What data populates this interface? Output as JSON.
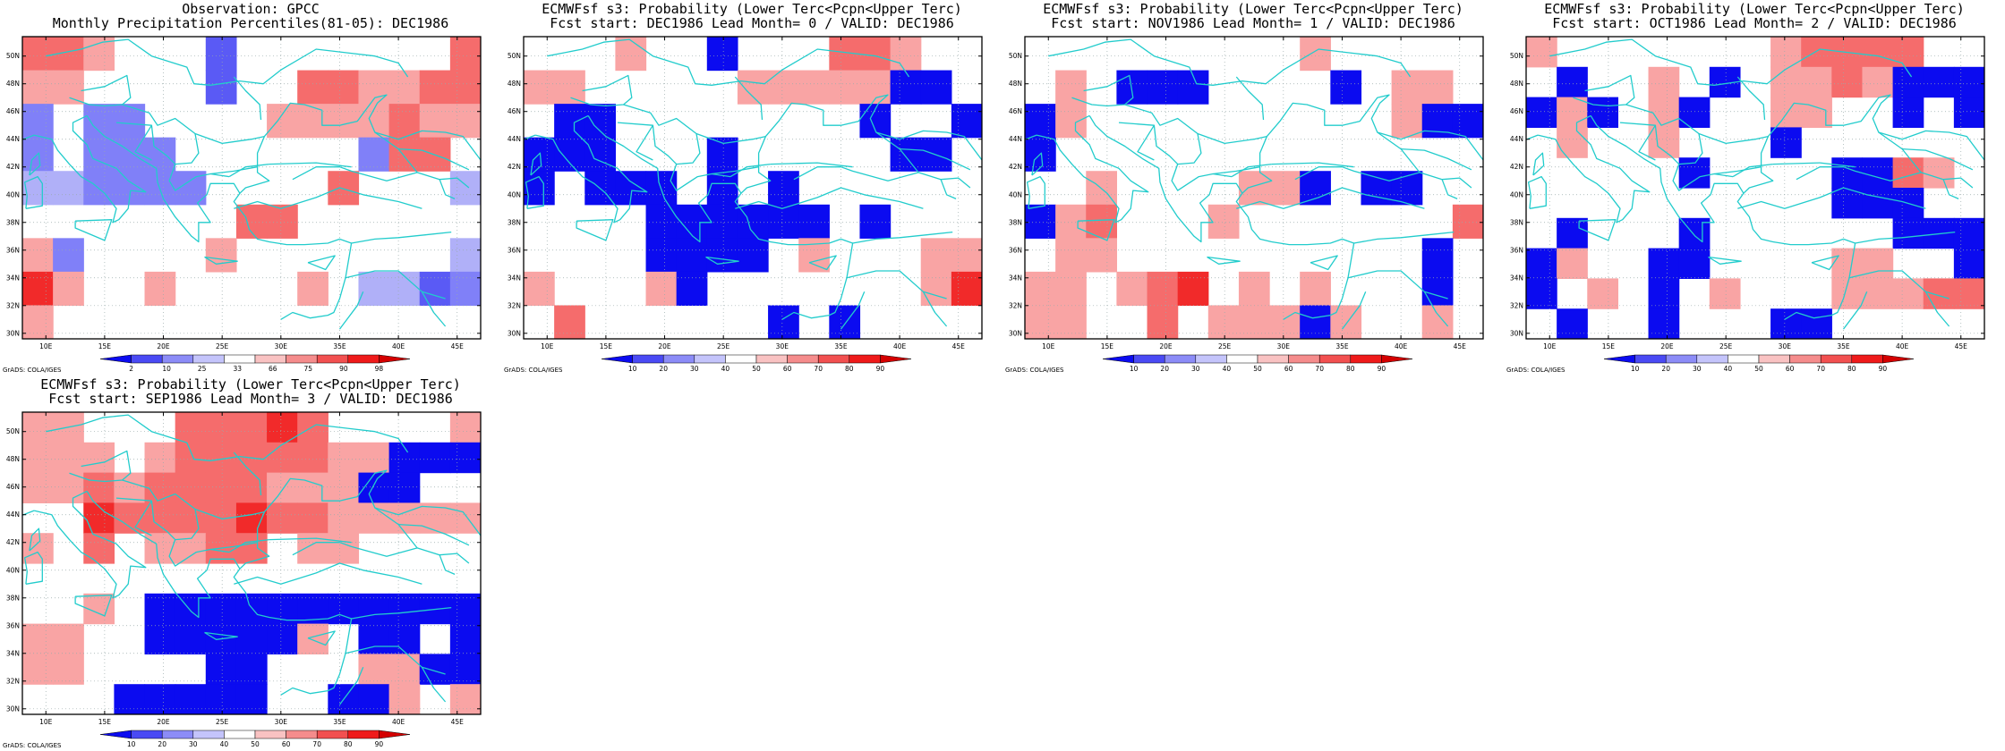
{
  "panels": [
    {
      "title1": "Observation: GPCC",
      "title2": "Monthly Precipitation Percentiles(81-05): DEC1986",
      "colorbar_labels": [
        "2",
        "10",
        "25",
        "33",
        "66",
        "75",
        "90",
        "98"
      ],
      "grid": [
        [
          "r2",
          "r2",
          "r1",
          "w",
          "w",
          "w",
          "b2",
          "w",
          "w",
          "w",
          "w",
          "w",
          "w",
          "w",
          "r2"
        ],
        [
          "r1",
          "r1",
          "w",
          "w",
          "w",
          "w",
          "b2",
          "w",
          "w",
          "r2",
          "r2",
          "r1",
          "r1",
          "r2",
          "r2"
        ],
        [
          "b1",
          "w",
          "b1",
          "b1",
          "w",
          "w",
          "w",
          "w",
          "r1",
          "r1",
          "r1",
          "r1",
          "r2",
          "r1",
          "r1"
        ],
        [
          "b1",
          "w",
          "b1",
          "b1",
          "b1",
          "w",
          "w",
          "w",
          "w",
          "w",
          "w",
          "b1",
          "r2",
          "r2",
          "w"
        ],
        [
          "b0",
          "b0",
          "b1",
          "b1",
          "b1",
          "b1",
          "w",
          "w",
          "w",
          "w",
          "r2",
          "w",
          "w",
          "w",
          "b0"
        ],
        [
          "w",
          "w",
          "w",
          "w",
          "w",
          "w",
          "w",
          "r2",
          "r2",
          "w",
          "w",
          "w",
          "w",
          "w",
          "w"
        ],
        [
          "r1",
          "b1",
          "w",
          "w",
          "w",
          "w",
          "r1",
          "w",
          "w",
          "w",
          "w",
          "w",
          "w",
          "w",
          "b0"
        ],
        [
          "r3",
          "r1",
          "w",
          "w",
          "r1",
          "w",
          "w",
          "w",
          "w",
          "r1",
          "w",
          "b0",
          "b0",
          "b2",
          "b1"
        ],
        [
          "r1",
          "w",
          "w",
          "w",
          "w",
          "w",
          "w",
          "w",
          "w",
          "w",
          "w",
          "w",
          "w",
          "w",
          "w"
        ]
      ]
    },
    {
      "title1": "ECMWFsf s3: Probability (Lower Terc<Pcpn<Upper Terc)",
      "title2": "Fcst start: DEC1986   Lead Month= 0 / VALID: DEC1986",
      "colorbar_labels": [
        "10",
        "20",
        "30",
        "40",
        "50",
        "60",
        "70",
        "80",
        "90"
      ],
      "grid": [
        [
          "w",
          "w",
          "w",
          "r1",
          "w",
          "w",
          "b3",
          "w",
          "w",
          "w",
          "r2",
          "r2",
          "r1",
          "w",
          "w"
        ],
        [
          "r1",
          "r1",
          "w",
          "w",
          "w",
          "w",
          "w",
          "r1",
          "r1",
          "r1",
          "r1",
          "r1",
          "b3",
          "b3",
          "w"
        ],
        [
          "w",
          "b3",
          "b3",
          "w",
          "w",
          "w",
          "w",
          "w",
          "w",
          "w",
          "w",
          "b3",
          "w",
          "w",
          "b3"
        ],
        [
          "b3",
          "b3",
          "b3",
          "w",
          "w",
          "w",
          "b3",
          "w",
          "w",
          "w",
          "w",
          "w",
          "b3",
          "b3",
          "w"
        ],
        [
          "b3",
          "w",
          "b3",
          "b3",
          "b3",
          "w",
          "b3",
          "w",
          "b3",
          "w",
          "w",
          "w",
          "w",
          "w",
          "w"
        ],
        [
          "w",
          "w",
          "w",
          "w",
          "b3",
          "b3",
          "b3",
          "b3",
          "b3",
          "b3",
          "w",
          "b3",
          "w",
          "w",
          "w"
        ],
        [
          "w",
          "w",
          "w",
          "w",
          "b3",
          "b3",
          "b3",
          "b3",
          "w",
          "r1",
          "w",
          "w",
          "w",
          "r1",
          "r1"
        ],
        [
          "r1",
          "w",
          "w",
          "w",
          "r1",
          "b3",
          "w",
          "w",
          "w",
          "w",
          "w",
          "w",
          "w",
          "r1",
          "r3"
        ],
        [
          "w",
          "r2",
          "w",
          "w",
          "w",
          "w",
          "w",
          "w",
          "b3",
          "w",
          "b3",
          "w",
          "w",
          "w",
          "w"
        ]
      ]
    },
    {
      "title1": "ECMWFsf s3: Probability (Lower Terc<Pcpn<Upper Terc)",
      "title2": "Fcst start: NOV1986   Lead Month= 1 / VALID: DEC1986",
      "colorbar_labels": [
        "10",
        "20",
        "30",
        "40",
        "50",
        "60",
        "70",
        "80",
        "90"
      ],
      "grid": [
        [
          "w",
          "w",
          "w",
          "w",
          "w",
          "w",
          "w",
          "w",
          "w",
          "r1",
          "w",
          "w",
          "w",
          "w",
          "w"
        ],
        [
          "w",
          "r1",
          "w",
          "b3",
          "b3",
          "b3",
          "w",
          "w",
          "w",
          "w",
          "b3",
          "w",
          "r1",
          "r1",
          "w"
        ],
        [
          "b3",
          "r1",
          "w",
          "w",
          "w",
          "w",
          "w",
          "w",
          "w",
          "w",
          "w",
          "w",
          "r1",
          "b3",
          "b3"
        ],
        [
          "b3",
          "w",
          "w",
          "w",
          "w",
          "w",
          "w",
          "w",
          "w",
          "w",
          "w",
          "w",
          "w",
          "w",
          "w"
        ],
        [
          "w",
          "w",
          "r1",
          "w",
          "w",
          "w",
          "w",
          "r1",
          "r1",
          "b3",
          "w",
          "b3",
          "b3",
          "w",
          "w"
        ],
        [
          "b3",
          "r1",
          "r2",
          "w",
          "w",
          "w",
          "r1",
          "w",
          "w",
          "w",
          "w",
          "w",
          "w",
          "w",
          "r2"
        ],
        [
          "w",
          "r1",
          "r1",
          "w",
          "w",
          "w",
          "w",
          "w",
          "w",
          "w",
          "w",
          "w",
          "w",
          "b3",
          "w"
        ],
        [
          "r1",
          "r1",
          "w",
          "r1",
          "r2",
          "r3",
          "w",
          "r1",
          "w",
          "r1",
          "w",
          "w",
          "w",
          "b3",
          "w"
        ],
        [
          "r1",
          "r1",
          "w",
          "w",
          "r2",
          "w",
          "r1",
          "r1",
          "r1",
          "b3",
          "r1",
          "w",
          "w",
          "r1",
          "w"
        ]
      ]
    },
    {
      "title1": "ECMWFsf s3: Probability (Lower Terc<Pcpn<Upper Terc)",
      "title2": "Fcst start: OCT1986   Lead Month= 2 / VALID: DEC1986",
      "colorbar_labels": [
        "10",
        "20",
        "30",
        "40",
        "50",
        "60",
        "70",
        "80",
        "90"
      ],
      "grid": [
        [
          "r1",
          "w",
          "w",
          "w",
          "w",
          "w",
          "w",
          "w",
          "r1",
          "r2",
          "r2",
          "r2",
          "r2",
          "w",
          "w"
        ],
        [
          "w",
          "b3",
          "w",
          "w",
          "r1",
          "w",
          "b3",
          "w",
          "r1",
          "r1",
          "r2",
          "r1",
          "b3",
          "b3",
          "b3"
        ],
        [
          "b3",
          "r1",
          "b3",
          "w",
          "r1",
          "b3",
          "w",
          "w",
          "r1",
          "r1",
          "w",
          "w",
          "b3",
          "w",
          "b3"
        ],
        [
          "w",
          "r1",
          "w",
          "w",
          "r1",
          "w",
          "w",
          "w",
          "b3",
          "w",
          "w",
          "w",
          "w",
          "w",
          "w"
        ],
        [
          "w",
          "w",
          "w",
          "w",
          "w",
          "b3",
          "w",
          "w",
          "w",
          "w",
          "b3",
          "b3",
          "r2",
          "r1",
          "w"
        ],
        [
          "w",
          "w",
          "w",
          "w",
          "w",
          "w",
          "w",
          "w",
          "w",
          "w",
          "b3",
          "b3",
          "b3",
          "w",
          "w"
        ],
        [
          "w",
          "b3",
          "w",
          "w",
          "w",
          "b3",
          "w",
          "w",
          "w",
          "w",
          "w",
          "w",
          "b3",
          "b3",
          "b3"
        ],
        [
          "b3",
          "r1",
          "w",
          "w",
          "b3",
          "b3",
          "w",
          "w",
          "w",
          "w",
          "r1",
          "r1",
          "w",
          "w",
          "b3"
        ],
        [
          "b3",
          "w",
          "r1",
          "w",
          "b3",
          "w",
          "r1",
          "w",
          "w",
          "w",
          "r1",
          "r1",
          "r1",
          "r2",
          "r2"
        ],
        [
          "w",
          "b3",
          "w",
          "w",
          "b3",
          "w",
          "w",
          "w",
          "b3",
          "b3",
          "w",
          "w",
          "w",
          "w",
          "w"
        ]
      ]
    },
    {
      "title1": "ECMWFsf s3: Probability (Lower Terc<Pcpn<Upper Terc)",
      "title2": "Fcst start: SEP1986   Lead Month= 3 / VALID: DEC1986",
      "colorbar_labels": [
        "10",
        "20",
        "30",
        "40",
        "50",
        "60",
        "70",
        "80",
        "90"
      ],
      "grid": [
        [
          "r1",
          "r1",
          "w",
          "w",
          "w",
          "r2",
          "r2",
          "r2",
          "r3",
          "r2",
          "w",
          "w",
          "w",
          "w",
          "r1"
        ],
        [
          "r1",
          "r1",
          "r1",
          "w",
          "r1",
          "r2",
          "r2",
          "r2",
          "r2",
          "r2",
          "r1",
          "r1",
          "b3",
          "b3",
          "b3"
        ],
        [
          "r1",
          "r1",
          "r2",
          "r1",
          "r2",
          "r2",
          "r2",
          "r2",
          "r1",
          "r1",
          "r1",
          "b3",
          "b3",
          "w",
          "w"
        ],
        [
          "w",
          "w",
          "r3",
          "r2",
          "r2",
          "r2",
          "r2",
          "r3",
          "r2",
          "r2",
          "r1",
          "r1",
          "r1",
          "r1",
          "r1"
        ],
        [
          "r1",
          "w",
          "r2",
          "w",
          "r1",
          "r1",
          "r2",
          "r2",
          "w",
          "r1",
          "r1",
          "w",
          "w",
          "w",
          "w"
        ],
        [
          "w",
          "w",
          "w",
          "w",
          "w",
          "w",
          "w",
          "w",
          "w",
          "w",
          "w",
          "w",
          "w",
          "w",
          "w"
        ],
        [
          "w",
          "w",
          "r1",
          "w",
          "b3",
          "b3",
          "b3",
          "b3",
          "b3",
          "b3",
          "b3",
          "b3",
          "b3",
          "b3",
          "b3"
        ],
        [
          "r1",
          "r1",
          "w",
          "w",
          "b3",
          "b3",
          "b3",
          "b3",
          "b3",
          "r1",
          "w",
          "b3",
          "b3",
          "w",
          "b3"
        ],
        [
          "r1",
          "r1",
          "w",
          "w",
          "w",
          "w",
          "b3",
          "b3",
          "w",
          "w",
          "w",
          "r1",
          "r1",
          "b3",
          "b3"
        ],
        [
          "w",
          "w",
          "w",
          "b3",
          "b3",
          "b3",
          "b3",
          "b3",
          "w",
          "w",
          "b3",
          "b3",
          "r1",
          "w",
          "r1"
        ]
      ]
    }
  ],
  "lat_labels": [
    "50N",
    "48N",
    "46N",
    "44N",
    "42N",
    "40N",
    "38N",
    "36N",
    "34N",
    "32N",
    "30N"
  ],
  "lon_labels": [
    "10E",
    "15E",
    "20E",
    "25E",
    "30E",
    "35E",
    "40E",
    "45E"
  ],
  "footer": "GrADS: COLA/IGES",
  "palette": {
    "b0": "#b0b0f8",
    "b1": "#8080f8",
    "b2": "#5a5af5",
    "b3": "#0b0bf0",
    "r1": "#f9a4a4",
    "r2": "#f56c6c",
    "r3": "#f12a2a",
    "w": "#ffffff",
    "coast": "#22cccc"
  },
  "colorbar_colors": [
    "#0b0bf0",
    "#4a4af4",
    "#8c8cf7",
    "#c4c4fb",
    "#ffffff",
    "#f9c2c2",
    "#f58c8c",
    "#f25050",
    "#ef1a1a",
    "#d40000"
  ]
}
